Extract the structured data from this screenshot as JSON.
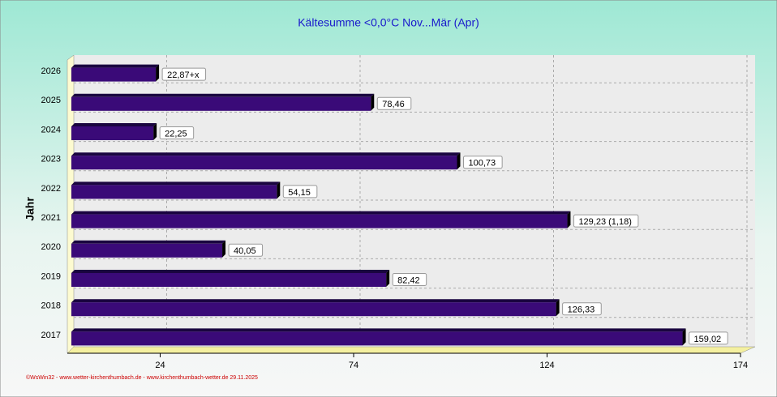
{
  "chart_data": {
    "type": "barh",
    "title": "Kältesumme  <0,0°C  Nov...Mär (Apr)",
    "y_label": "Jahr",
    "footer": "©WsWin32 - www.wetter-kirchenthumbach.de - www.kirchenthumbach-wetter.de  29.11.2025",
    "categories": [
      "2026",
      "2025",
      "2024",
      "2023",
      "2022",
      "2021",
      "2020",
      "2019",
      "2018",
      "2017"
    ],
    "values": [
      22.87,
      78.46,
      22.25,
      100.73,
      54.15,
      129.23,
      40.05,
      82.42,
      126.33,
      159.02
    ],
    "value_labels": [
      "22,87+x",
      "78,46",
      "22,25",
      "100,73",
      "54,15",
      "129,23 (1,18)",
      "40,05",
      "82,42",
      "126,33",
      "159,02"
    ],
    "color": "#3a0a78",
    "xlim": [
      0,
      174
    ],
    "xticks": [
      24,
      74,
      124,
      174
    ],
    "grid": true
  }
}
